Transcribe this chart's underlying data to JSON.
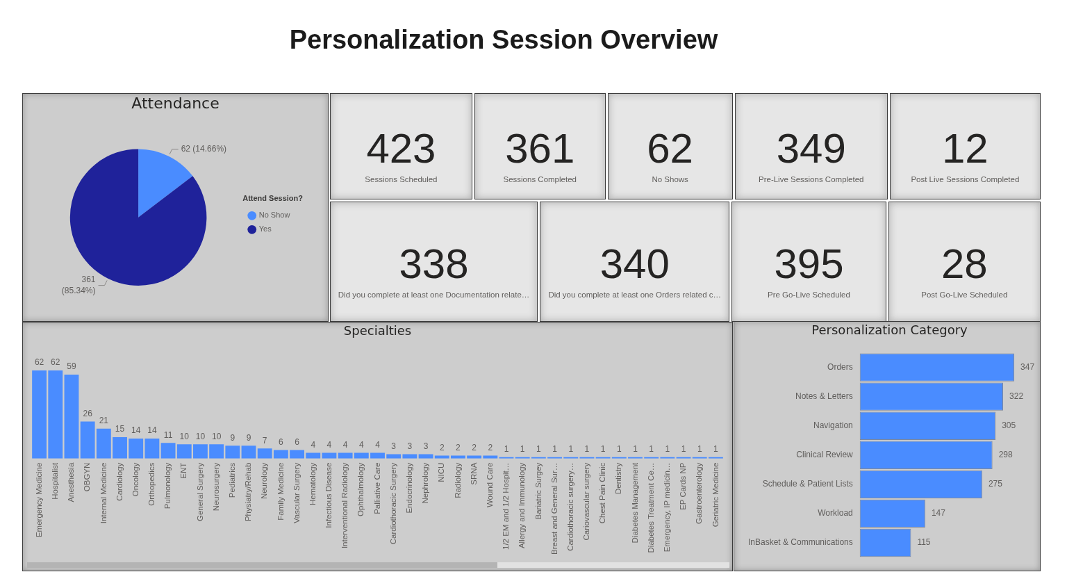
{
  "chart_data": [
    {
      "type": "other",
      "title": "Personalization Session Overview"
    },
    {
      "type": "pie",
      "title": "Attendance",
      "categories": [
        "No Show",
        "Yes"
      ],
      "values": [
        62,
        361
      ],
      "colors": [
        "#4a8cff",
        "#1f229a"
      ],
      "value_labels": [
        "62 (14.66%)",
        "361 (85.34%)"
      ],
      "legend": "right",
      "legend_title": "Attend Session?"
    },
    {
      "type": "other",
      "categories": [
        "Sessions Scheduled",
        "Sessions Completed",
        "No Shows",
        "Pre-Live Sessions Completed",
        "Post Live Sessions Completed",
        "Did you complete at least one Documentation relate…",
        "Did you complete at least one Orders related c…",
        "Pre Go-Live Scheduled",
        "Post Go-Live Scheduled"
      ],
      "values": [
        423,
        361,
        62,
        349,
        12,
        338,
        340,
        395,
        28
      ],
      "data_labels": true
    },
    {
      "type": "bar",
      "title": "Specialties",
      "categories": [
        "Emergency Medicine",
        "Hospitalist",
        "Anesthesia",
        "OBGYN",
        "Internal Medicine",
        "Cardiology",
        "Oncology",
        "Orthopedics",
        "Pulmonology",
        "ENT",
        "General Surgery",
        "Neurosurgery",
        "Pediatrics",
        "Physiatry/Rehab",
        "Neurology",
        "Family Medicine",
        "Vascular Surgery",
        "Hematology",
        "Infectious Disease",
        "Interventional Radiology",
        "Ophthalmology",
        "Palliative Care",
        "Cardiothoracic Surgery",
        "Endocrinology",
        "Nephrology",
        "NICU",
        "Radiology",
        "SRNA",
        "Wound Care",
        "1/2 EM and 1/2 Hospit…",
        "Allergy and Immunology",
        "Bariatric Surgey",
        "Breast and General Sur…",
        "Cardiothoracic surgery…",
        "Cariovascular surgery",
        "Chest Pain Clinic",
        "Dentistry",
        "Diabetes Management",
        "Diabetes Treatment Ce…",
        "Emergency, IP medicin…",
        "EP Cards NP",
        "Gastroenterology",
        "Geriatric Medicine"
      ],
      "values": [
        62,
        62,
        59,
        26,
        21,
        15,
        14,
        14,
        11,
        10,
        10,
        10,
        9,
        9,
        7,
        6,
        6,
        4,
        4,
        4,
        4,
        4,
        3,
        3,
        3,
        2,
        2,
        2,
        2,
        1,
        1,
        1,
        1,
        1,
        1,
        1,
        1,
        1,
        1,
        1,
        1,
        1,
        1
      ],
      "color": "#4a8cff",
      "data_labels": true,
      "tick_labels": "x"
    },
    {
      "type": "bar",
      "orientation": "horizontal",
      "title": "Personalization Category",
      "categories": [
        "Orders",
        "Notes & Letters",
        "Navigation",
        "Clinical Review",
        "Schedule & Patient Lists",
        "Workload",
        "InBasket & Communications"
      ],
      "values": [
        347,
        322,
        305,
        298,
        275,
        147,
        115
      ],
      "color": "#4a8cff",
      "data_labels": true,
      "tick_labels": "y"
    }
  ]
}
